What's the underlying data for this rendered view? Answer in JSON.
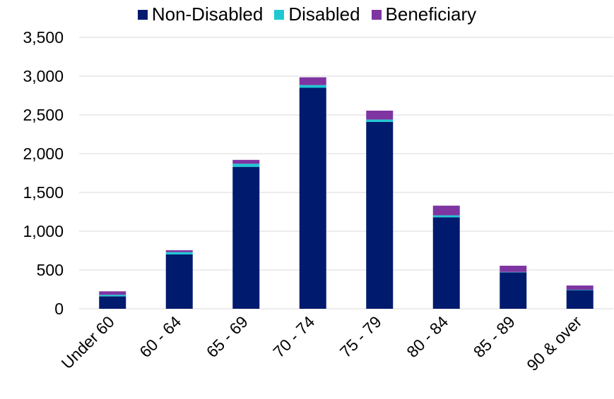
{
  "chart_data": {
    "type": "bar",
    "stacked": true,
    "categories": [
      "Under 60",
      "60 - 64",
      "65 - 69",
      "70 - 74",
      "75 - 79",
      "80 - 84",
      "85 - 89",
      "90 & over"
    ],
    "series": [
      {
        "name": "Non-Disabled",
        "color": "#001a6e",
        "values": [
          160,
          700,
          1830,
          2850,
          2410,
          1180,
          470,
          240
        ]
      },
      {
        "name": "Disabled",
        "color": "#1ec8d2",
        "values": [
          20,
          30,
          40,
          35,
          30,
          25,
          5,
          5
        ]
      },
      {
        "name": "Beneficiary",
        "color": "#7e35a2",
        "values": [
          45,
          25,
          50,
          100,
          115,
          125,
          80,
          55
        ]
      }
    ],
    "ylim": [
      0,
      3500
    ],
    "yticks": [
      "0",
      "500",
      "1,000",
      "1,500",
      "2,000",
      "2,500",
      "3,000",
      "3,500"
    ],
    "grid": true,
    "legend": "top-center",
    "title": "",
    "xlabel": "",
    "ylabel": ""
  }
}
